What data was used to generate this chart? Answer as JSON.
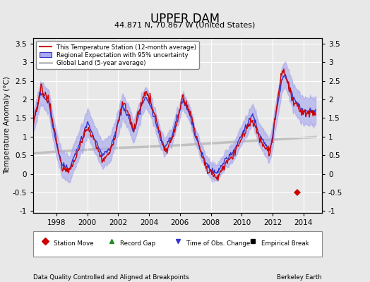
{
  "title": "UPPER DAM",
  "subtitle": "44.871 N, 70.867 W (United States)",
  "footer_left": "Data Quality Controlled and Aligned at Breakpoints",
  "footer_right": "Berkeley Earth",
  "ylabel": "Temperature Anomaly (°C)",
  "xlim": [
    1996.5,
    2015.2
  ],
  "ylim": [
    -1.05,
    3.65
  ],
  "yticks": [
    -1,
    -0.5,
    0,
    0.5,
    1,
    1.5,
    2,
    2.5,
    3,
    3.5
  ],
  "xticks": [
    1998,
    2000,
    2002,
    2004,
    2006,
    2008,
    2010,
    2012,
    2014
  ],
  "bg_color": "#e8e8e8",
  "grid_color": "#ffffff",
  "station_color": "#cc0000",
  "regional_color": "#3333cc",
  "regional_fill": "#aaaaee",
  "global_color": "#c0c0c0",
  "legend_items": [
    "This Temperature Station (12-month average)",
    "Regional Expectation with 95% uncertainty",
    "Global Land (5-year average)"
  ],
  "marker_legend": [
    {
      "label": "Station Move",
      "color": "#cc0000",
      "marker": "D"
    },
    {
      "label": "Record Gap",
      "color": "#228B22",
      "marker": "^"
    },
    {
      "label": "Time of Obs. Change",
      "color": "#3333cc",
      "marker": "v"
    },
    {
      "label": "Empirical Break",
      "color": "#000000",
      "marker": "s"
    }
  ],
  "station_move_x": [
    2013.6
  ],
  "station_move_y": [
    -0.5
  ]
}
